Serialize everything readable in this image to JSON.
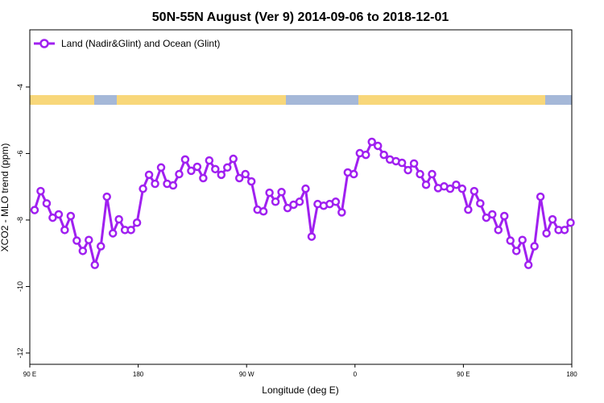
{
  "chart_data": {
    "type": "line",
    "title": "50N-55N August (Ver 9)   2014-09-06 to 2018-12-01",
    "xlabel": "Longitude (deg E)",
    "ylabel": "XCO2 - MLO trend (ppm)",
    "xlim": [
      90,
      540
    ],
    "ylim": [
      -12.34,
      -2.28
    ],
    "xticks": [
      {
        "value": 90,
        "label": "90 E"
      },
      180,
      {
        "value": 270,
        "label": "90 W"
      },
      {
        "value": 360,
        "label": "0"
      },
      {
        "value": 450,
        "label": "90 E"
      },
      {
        "value": 540,
        "label": "180"
      }
    ],
    "yticks": [
      -12,
      -10,
      -8,
      -6,
      -4
    ],
    "legend": "upper left",
    "x": [
      94,
      99,
      104,
      109,
      114,
      119,
      124,
      129,
      134,
      139,
      144,
      149,
      154,
      159,
      164,
      169,
      174,
      179,
      184,
      189,
      194,
      199,
      204,
      209,
      214,
      219,
      224,
      229,
      234,
      239,
      244,
      249,
      254,
      259,
      264,
      269,
      274,
      279,
      284,
      289,
      294,
      299,
      304,
      309,
      314,
      319,
      324,
      329,
      334,
      339,
      344,
      349,
      354,
      359,
      364,
      369,
      374,
      379,
      384,
      389,
      394,
      399,
      404,
      409,
      414,
      419,
      424,
      429,
      434,
      439,
      444,
      449,
      454,
      459,
      464,
      469,
      474,
      479,
      484,
      489,
      494,
      499,
      504,
      509,
      514,
      519,
      524,
      529,
      534,
      539
    ],
    "series": [
      {
        "name": "Land (Nadir&Glint) and Ocean (Glint)",
        "color": "#a020f0",
        "values": [
          -7.7,
          -7.13,
          -7.5,
          -7.93,
          -7.83,
          -8.3,
          -7.88,
          -8.62,
          -8.93,
          -8.6,
          -9.35,
          -8.79,
          -7.3,
          -8.4,
          -7.98,
          -8.3,
          -8.3,
          -8.08,
          -7.06,
          -6.64,
          -6.91,
          -6.42,
          -6.91,
          -6.96,
          -6.62,
          -6.18,
          -6.52,
          -6.4,
          -6.74,
          -6.21,
          -6.47,
          -6.64,
          -6.42,
          -6.16,
          -6.74,
          -6.62,
          -6.84,
          -7.69,
          -7.74,
          -7.18,
          -7.45,
          -7.16,
          -7.64,
          -7.54,
          -7.45,
          -7.06,
          -8.5,
          -7.52,
          -7.57,
          -7.52,
          -7.45,
          -7.77,
          -6.57,
          -6.62,
          -5.99,
          -6.04,
          -5.65,
          -5.77,
          -6.04,
          -6.18,
          -6.23,
          -6.28,
          -6.5,
          -6.3,
          -6.62,
          -6.94,
          -6.62,
          -7.04,
          -6.99,
          -7.06,
          -6.94,
          -7.06,
          -7.69,
          -7.13,
          -7.5,
          -7.93,
          -7.83,
          -8.3,
          -7.88,
          -8.62,
          -8.93,
          -8.6,
          -9.35,
          -8.79,
          -7.3,
          -8.4,
          -7.98,
          -8.3,
          -8.3,
          -8.08
        ]
      }
    ]
  }
}
